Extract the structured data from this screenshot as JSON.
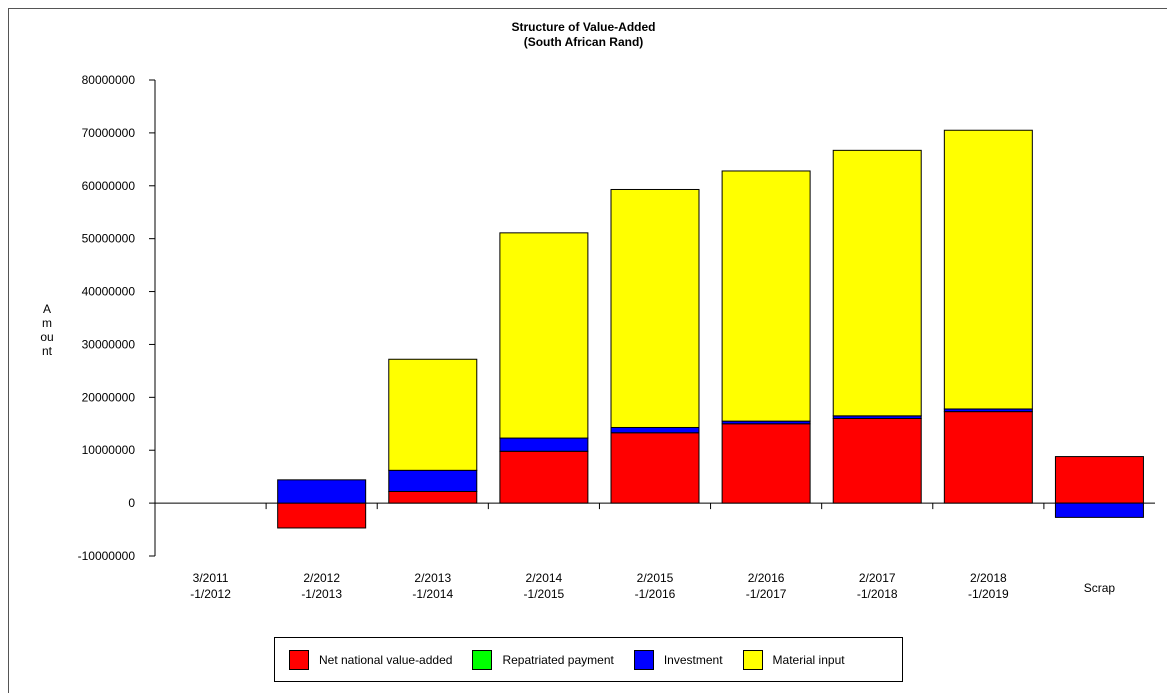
{
  "chart_data": {
    "type": "bar",
    "stacked": true,
    "title": "Structure of Value-Added",
    "subtitle": "(South African Rand)",
    "ylabel": "Amount",
    "ylim": [
      -10000000,
      80000000
    ],
    "yticks": [
      "80000000",
      "70000000",
      "60000000",
      "50000000",
      "40000000",
      "30000000",
      "20000000",
      "10000000",
      "0",
      "-10000000"
    ],
    "categories": [
      [
        "3/2011",
        "-1/2012"
      ],
      [
        "2/2012",
        "-1/2013"
      ],
      [
        "2/2013",
        "-1/2014"
      ],
      [
        "2/2014",
        "-1/2015"
      ],
      [
        "2/2015",
        "-1/2016"
      ],
      [
        "2/2016",
        "-1/2017"
      ],
      [
        "2/2017",
        "-1/2018"
      ],
      [
        "2/2018",
        "-1/2019"
      ],
      [
        "Scrap"
      ]
    ],
    "series": [
      {
        "name": "Net national value-added",
        "color": "#ff0000",
        "values": [
          0,
          -4700000,
          2200000,
          9800000,
          13300000,
          15000000,
          16000000,
          17300000,
          8800000
        ]
      },
      {
        "name": "Repatriated payment",
        "color": "#00ff00",
        "values": [
          0,
          0,
          0,
          0,
          0,
          0,
          0,
          0,
          0
        ]
      },
      {
        "name": "Investment",
        "color": "#0000ff",
        "values": [
          0,
          4400000,
          4000000,
          2500000,
          1000000,
          500000,
          500000,
          500000,
          -2700000
        ]
      },
      {
        "name": "Material input",
        "color": "#ffff00",
        "values": [
          0,
          0,
          21000000,
          38800000,
          45000000,
          47300000,
          50200000,
          52700000,
          0
        ]
      }
    ],
    "legend_position": "bottom",
    "grid": false
  }
}
